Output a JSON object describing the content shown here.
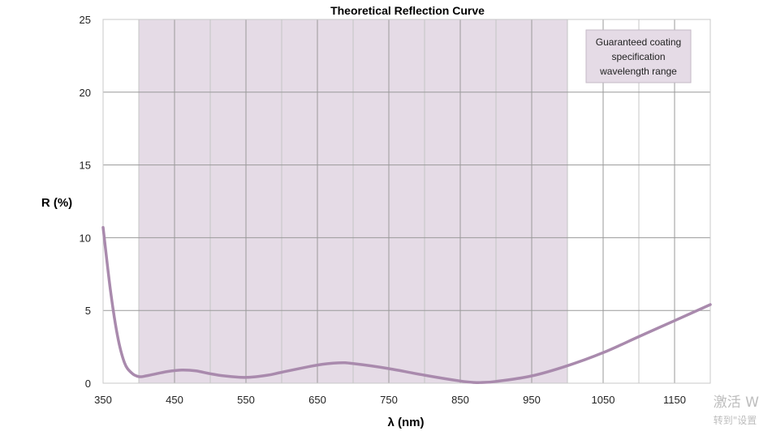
{
  "chart_data": {
    "type": "line",
    "title": "Theoretical Reflection Curve",
    "xlabel": "λ (nm)",
    "ylabel": "R (%)",
    "xlim": [
      350,
      1200
    ],
    "ylim": [
      0,
      25
    ],
    "xticks": [
      350,
      450,
      550,
      650,
      750,
      850,
      950,
      1050,
      1150
    ],
    "yticks": [
      0,
      5,
      10,
      15,
      20,
      25
    ],
    "grid": true,
    "shaded_range": {
      "x_start": 400,
      "x_end": 1000,
      "color": "#e5dbe6",
      "label": "Guaranteed coating specification wavelength range"
    },
    "legend": {
      "position": "top-right",
      "lines": [
        "Guaranteed coating",
        "specification",
        "wavelength range"
      ]
    },
    "series": [
      {
        "color": "#a98aad",
        "x": [
          350,
          360,
          370,
          380,
          390,
          400,
          410,
          420,
          440,
          460,
          480,
          500,
          520,
          550,
          580,
          600,
          650,
          680,
          700,
          750,
          800,
          850,
          870,
          880,
          900,
          950,
          1000,
          1050,
          1100,
          1150,
          1200
        ],
        "y": [
          10.7,
          6.5,
          3.3,
          1.4,
          0.7,
          0.45,
          0.5,
          0.6,
          0.8,
          0.9,
          0.85,
          0.65,
          0.5,
          0.4,
          0.55,
          0.75,
          1.25,
          1.4,
          1.35,
          1.0,
          0.55,
          0.15,
          0.05,
          0.05,
          0.12,
          0.5,
          1.2,
          2.1,
          3.2,
          4.3,
          5.4
        ]
      }
    ]
  },
  "watermark": {
    "line1": "激活 W",
    "line2": "转到\"设置"
  }
}
